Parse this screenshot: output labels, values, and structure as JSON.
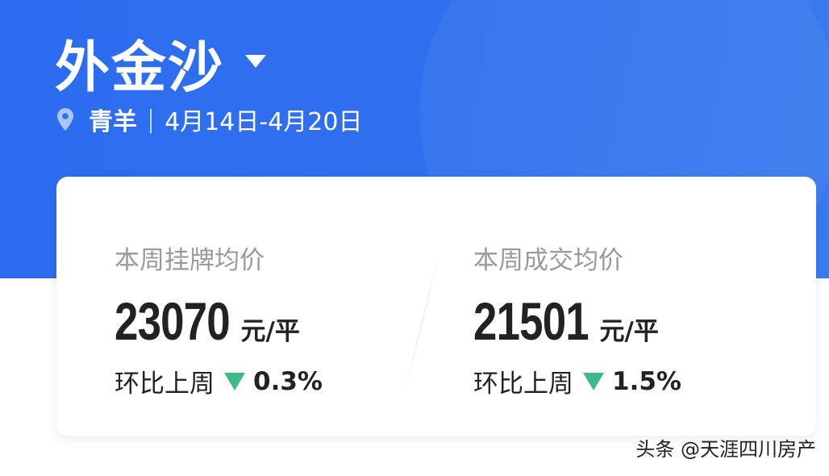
{
  "header": {
    "title": "外金沙",
    "location": "青羊",
    "separator": "|",
    "date_range": "4月14日-4月20日"
  },
  "card": {
    "listing": {
      "label": "本周挂牌均价",
      "value": "23070",
      "unit": "元/平",
      "change_label": "环比上周",
      "change": "0.3%",
      "direction": "down"
    },
    "deal": {
      "label": "本周成交均价",
      "value": "21501",
      "unit": "元/平",
      "change_label": "环比上周",
      "change": "1.5%",
      "direction": "down"
    }
  },
  "watermark": "头条 @天涯四川房产",
  "colors": {
    "brand": "#2f6fee",
    "down": "#3dbb87"
  },
  "icons": {
    "location": "map-pin-icon",
    "dropdown": "caret-down-icon",
    "trend": "triangle-down-icon"
  }
}
